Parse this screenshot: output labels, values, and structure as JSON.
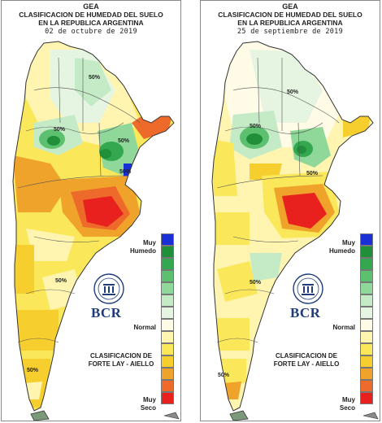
{
  "panels": [
    {
      "org": "GEA",
      "title1": "CLASIFICACION DE HUMEDAD DEL SUELO",
      "title2": "EN LA REPUBLICA ARGENTINA",
      "date": "02 de octubre de 2019",
      "contour_labels": [
        "50%",
        "50%",
        "50%",
        "50%",
        "50%",
        "50%"
      ]
    },
    {
      "org": "GEA",
      "title1": "CLASIFICACION DE HUMEDAD DEL SUELO",
      "title2": "EN LA REPUBLICA ARGENTINA",
      "date": "25 de septiembre de 2019",
      "contour_labels": [
        "50%",
        "50%",
        "50%",
        "50%",
        "50%"
      ]
    }
  ],
  "legend": {
    "muy_humedo_1": "Muy",
    "muy_humedo_2": "Humedo",
    "normal": "Normal",
    "muy_seco_1": "Muy",
    "muy_seco_2": "Seco",
    "colors": [
      "#1a2fd6",
      "#1f8f3a",
      "#34a84f",
      "#5cc070",
      "#8fd89a",
      "#c4ebc6",
      "#e6f5e2",
      "#fffbe6",
      "#fff5b0",
      "#fbe85a",
      "#f6cf2e",
      "#f0a32a",
      "#ee6a2b",
      "#e8201e"
    ]
  },
  "logo": "BCR",
  "classification": {
    "line1": "CLASIFICACION DE",
    "line2": "FORTE LAY - AIELLO"
  }
}
